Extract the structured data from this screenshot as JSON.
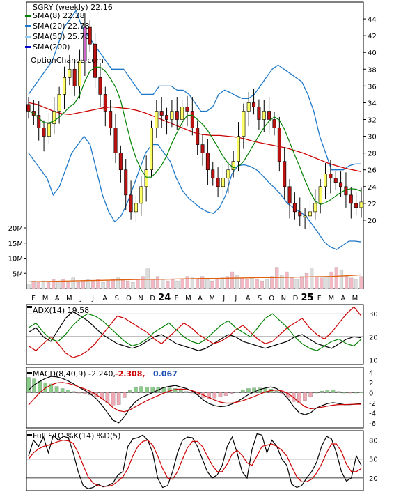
{
  "chart_data": [
    {
      "panel": "price",
      "type": "candlestick",
      "title": "SGRY (weekly) 22.16",
      "watermark": "OptionChance.com",
      "legend": [
        {
          "label": "SMA(8) 22.28",
          "color": "#008000"
        },
        {
          "label": "SMA(20) 22.78",
          "color": "#1e78c8"
        },
        {
          "label": "SMA(50) 25.78",
          "color": "#8fc8f0"
        },
        {
          "label": "SMA(200)",
          "color": "#0000cc"
        }
      ],
      "legend_placement": "top-left",
      "y_ticks": [
        20,
        22,
        24,
        26,
        28,
        30,
        32,
        34,
        36,
        38,
        40,
        42,
        44
      ],
      "ylim": [
        18,
        46
      ],
      "x_labels": [
        "F",
        "M",
        "A",
        "M",
        "J",
        "J",
        "A",
        "S",
        "O",
        "N",
        "D",
        "24",
        "F",
        "M",
        "A",
        "M",
        "J",
        "J",
        "A",
        "S",
        "O",
        "N",
        "D",
        "25",
        "F",
        "M",
        "A",
        "M"
      ],
      "closes": [
        33,
        32.5,
        31,
        30,
        31.5,
        33,
        35,
        37,
        38,
        36,
        39,
        43,
        41,
        37,
        35,
        33,
        31,
        28,
        26,
        23,
        21,
        22,
        24,
        26,
        31,
        33,
        32.5,
        32,
        33,
        32,
        33.5,
        33,
        31,
        29,
        28,
        26,
        25,
        24,
        25,
        26,
        27,
        30,
        33,
        34,
        33.5,
        32,
        33,
        32,
        31,
        27,
        24,
        22,
        21,
        20.5,
        20.5,
        21,
        22,
        24,
        25.5,
        25,
        24.5,
        24,
        23,
        22,
        21.5,
        22.16
      ],
      "bollinger_upper": [
        35,
        36,
        37,
        38,
        39,
        41,
        43,
        44,
        45,
        43,
        42,
        41,
        40,
        39,
        38,
        38,
        38,
        37,
        36,
        35,
        35,
        35,
        36,
        36,
        36,
        35.5,
        35.5,
        35,
        34,
        33,
        33,
        33.5,
        35,
        35.5,
        35.2,
        34.8,
        34.5,
        34.5,
        35,
        36,
        37,
        38,
        38.5,
        38,
        37.5,
        37,
        36.5,
        35,
        33,
        30,
        28,
        26,
        26,
        26,
        26.5,
        26.7,
        26.7
      ],
      "bollinger_lower": [
        28,
        27,
        26,
        25,
        23,
        24,
        26,
        28,
        29,
        30,
        29,
        26,
        23,
        21,
        19.8,
        20.5,
        22,
        24,
        26,
        28,
        29,
        29,
        28,
        27,
        25,
        23.5,
        22.6,
        22,
        21.4,
        21,
        20.8,
        21.5,
        23,
        25.5,
        26.5,
        26.6,
        26.4,
        26,
        25.3,
        24.5,
        23.8,
        23,
        22,
        21.5,
        21,
        20.5,
        19.5,
        18.5,
        17.4,
        16.8,
        16.5,
        17,
        17.5,
        17.5,
        17.4
      ],
      "sma50": [
        34,
        33.8,
        33.4,
        33,
        32.7,
        32.6,
        32.8,
        33,
        33.2,
        33.4,
        33.5,
        33.4,
        33.3,
        33.1,
        32.8,
        32.4,
        32,
        31.6,
        31.2,
        30.8,
        30.4,
        30.2,
        30.1,
        30.1,
        30,
        29.9,
        29.7,
        29.4,
        29.2,
        29,
        28.8,
        28.6,
        28.3,
        28,
        27.6,
        27.2,
        26.8,
        26.5,
        26.2,
        26,
        25.78
      ]
    },
    {
      "panel": "volume",
      "type": "bar",
      "y_ticks": [
        "5M",
        "10M",
        "15M",
        "20M"
      ],
      "ylim": [
        0,
        20
      ],
      "volume_M": [
        1.5,
        2.5,
        2,
        2.5,
        2,
        3,
        2.5,
        3,
        2,
        3.5,
        2,
        2.5,
        3,
        2.5,
        3,
        2,
        2.5,
        3,
        3.5,
        3,
        2.5,
        2,
        3,
        4,
        6.5,
        3,
        4,
        3,
        2.5,
        3,
        2.5,
        3,
        4,
        3.5,
        3,
        4,
        3,
        2.5,
        3,
        3.5,
        4,
        5.5,
        4.5,
        3.5,
        3,
        3.5,
        3,
        2.5,
        3,
        4,
        7,
        4.5,
        5.5,
        3.5,
        3,
        4,
        5,
        6.5,
        4,
        3.5,
        4,
        5.5,
        7,
        6,
        4,
        3.5,
        3,
        4
      ],
      "volume_avg_M": [
        2.2,
        2.3,
        2.4,
        2.5,
        2.6,
        2.7,
        2.8,
        2.9,
        3,
        3,
        3.1,
        3.2,
        3.3,
        3.3,
        3.4,
        3.5,
        3.6,
        3.6,
        3.7,
        3.8,
        3.9,
        4,
        4.2,
        4.5
      ]
    },
    {
      "panel": "adx",
      "type": "line",
      "label": "ADX(14) 19.58",
      "y_ticks": [
        10,
        20,
        30
      ],
      "ylim": [
        8,
        34
      ],
      "series": [
        {
          "color": "#000000",
          "values": [
            22,
            24,
            20,
            18,
            23,
            28,
            31,
            29,
            27,
            24,
            21,
            19,
            17,
            16,
            15,
            16,
            18,
            20,
            21,
            19,
            17,
            16,
            15,
            14,
            15,
            17,
            19,
            21,
            20,
            18,
            17,
            16,
            15,
            16,
            17,
            18,
            20,
            21,
            19,
            17,
            16,
            15,
            17,
            19,
            20,
            19.58
          ]
        },
        {
          "color": "#cc0000",
          "values": [
            16,
            14,
            17,
            20,
            17,
            13,
            11,
            12,
            14,
            17,
            21,
            25,
            29,
            28,
            26,
            24,
            22,
            19,
            17,
            20,
            23,
            26,
            24,
            21,
            19,
            17,
            18,
            20,
            23,
            25,
            22,
            19,
            17,
            18,
            21,
            24,
            26,
            28,
            24,
            21,
            19,
            22,
            26,
            30,
            33,
            29
          ]
        },
        {
          "color": "#008000",
          "values": [
            24,
            26,
            22,
            19,
            18,
            21,
            25,
            28,
            30,
            29,
            27,
            24,
            21,
            18,
            16,
            17,
            19,
            22,
            24,
            26,
            23,
            20,
            18,
            17,
            19,
            22,
            25,
            27,
            24,
            22,
            20,
            24,
            28,
            30,
            27,
            24,
            20,
            17,
            15,
            14,
            16,
            18,
            19,
            17,
            16,
            19
          ]
        }
      ]
    },
    {
      "panel": "macd",
      "type": "line",
      "label": "MACD(8,40,9) -2.240,",
      "macd_value": "-2.308,",
      "signal_value": "0.067",
      "y_ticks": [
        4,
        2,
        0,
        -2,
        -4,
        -6
      ],
      "ylim": [
        -7,
        5
      ],
      "series": [
        {
          "color": "#000000",
          "values": [
            0.5,
            1.5,
            2.2,
            2.8,
            3.2,
            3.1,
            2.8,
            2.3,
            1.7,
            1,
            0.4,
            -0.3,
            -1.2,
            -2.5,
            -4,
            -5.5,
            -6,
            -4.8,
            -3,
            -1.8,
            -1,
            -0.5,
            0,
            0.5,
            1,
            1.2,
            1.4,
            1.1,
            0.8,
            0.3,
            -0.5,
            -1.5,
            -2.2,
            -2.6,
            -2.8,
            -2.7,
            -2.3,
            -1.8,
            -1.1,
            -0.4,
            0.1,
            0.6,
            0.9,
            1.1,
            0.8,
            0,
            -1.2,
            -2.8,
            -4,
            -4.4,
            -4,
            -3.1,
            -2.6,
            -2.2,
            -2,
            -2.2,
            -2.4,
            -2.4,
            -2.3,
            -2.24
          ]
        },
        {
          "color": "#cc0000",
          "values": [
            -2.5,
            -1.2,
            0,
            0.9,
            1.5,
            1.9,
            2,
            1.8,
            1.5,
            1.1,
            0.7,
            0.2,
            -0.4,
            -1.2,
            -2,
            -3,
            -3.6,
            -3.8,
            -3.4,
            -2.8,
            -2.2,
            -1.6,
            -1.1,
            -0.6,
            -0.1,
            0.3,
            0.6,
            0.7,
            0.6,
            0.4,
            0,
            -0.5,
            -1,
            -1.5,
            -1.9,
            -2.1,
            -2.1,
            -1.9,
            -1.6,
            -1.2,
            -0.8,
            -0.3,
            0.1,
            0.4,
            0.5,
            0.3,
            -0.2,
            -1,
            -2,
            -2.8,
            -3.2,
            -3.1,
            -2.9,
            -2.7,
            -2.5,
            -2.4,
            -2.4,
            -2.35,
            -2.32,
            -2.308
          ]
        }
      ],
      "histogram": [
        3,
        2.7,
        2.2,
        1.9,
        1.7,
        1.2,
        0.8,
        0.5,
        0.2,
        -0.1,
        -0.3,
        -0.5,
        -0.8,
        -1.3,
        -2,
        -2.5,
        -2.4,
        -1,
        0.4,
        1,
        1.2,
        1.1,
        1.1,
        1.1,
        1.1,
        0.9,
        0.8,
        0.4,
        0.2,
        -0.1,
        -0.5,
        -1,
        -1.2,
        -1.1,
        -0.9,
        -0.6,
        -0.2,
        0.1,
        0.5,
        0.8,
        0.9,
        0.9,
        0.8,
        0.7,
        0.3,
        -0.3,
        -1,
        -1.8,
        -2,
        -1.6,
        -0.8,
        0,
        0.3,
        0.5,
        0.5,
        0.2,
        0,
        -0.05,
        0,
        0.07
      ]
    },
    {
      "panel": "stochastic",
      "type": "line",
      "label": "Full STO %K(14) %D(5)",
      "y_ticks": [
        80,
        50,
        20
      ],
      "ylim": [
        0,
        95
      ],
      "series": [
        {
          "color": "#000000",
          "values": [
            55,
            80,
            70,
            85,
            60,
            88,
            80,
            86,
            84,
            60,
            30,
            8,
            3,
            5,
            10,
            6,
            8,
            12,
            25,
            30,
            70,
            82,
            84,
            88,
            80,
            60,
            20,
            5,
            8,
            30,
            60,
            80,
            85,
            84,
            70,
            50,
            30,
            20,
            25,
            40,
            70,
            85,
            60,
            30,
            20,
            65,
            90,
            88,
            60,
            80,
            70,
            50,
            40,
            10,
            5,
            8,
            20,
            30,
            45,
            70,
            86,
            82,
            60,
            30,
            15,
            20,
            55,
            40
          ]
        },
        {
          "color": "#cc0000",
          "values": [
            50,
            60,
            66,
            70,
            72,
            75,
            78,
            80,
            79,
            75,
            60,
            40,
            22,
            12,
            8,
            7,
            7,
            9,
            15,
            22,
            35,
            55,
            70,
            78,
            80,
            72,
            55,
            35,
            20,
            18,
            30,
            50,
            68,
            78,
            78,
            70,
            55,
            40,
            30,
            30,
            42,
            58,
            64,
            56,
            44,
            40,
            55,
            70,
            72,
            74,
            70,
            64,
            55,
            38,
            22,
            14,
            14,
            18,
            28,
            42,
            60,
            74,
            74,
            62,
            42,
            30,
            30,
            35
          ]
        }
      ]
    }
  ]
}
